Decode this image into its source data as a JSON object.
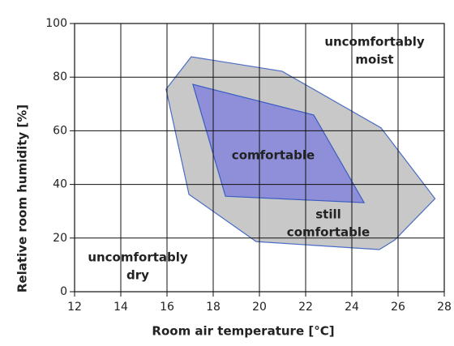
{
  "chart_data": {
    "type": "polygon",
    "xlabel": "Room air temperature   [°C]",
    "ylabel": "Relative room humidity  [%]",
    "xlim": [
      12,
      28
    ],
    "xticks": [
      12,
      14,
      16,
      18,
      20,
      22,
      24,
      26,
      28
    ],
    "ylim": [
      0,
      100
    ],
    "yticks": [
      0,
      20,
      40,
      60,
      80,
      100
    ],
    "grid": true,
    "series": [
      {
        "color": "#c8c8c8",
        "edge": "#4a6cc4",
        "x": [
          17.05,
          20.98,
          25.26,
          27.6,
          25.86,
          25.19,
          19.86,
          16.95,
          15.96
        ],
        "values": [
          87.6,
          82.2,
          61.1,
          34.7,
          19.3,
          15.7,
          18.7,
          36.3,
          75.5
        ]
      },
      {
        "color": "#8f8fd9",
        "edge": "#3a5cc0",
        "x": [
          17.12,
          22.35,
          24.53,
          18.53
        ],
        "values": [
          77.3,
          65.9,
          33.2,
          35.6
        ]
      }
    ],
    "annotations": [
      {
        "lines": [
          "uncomfortably",
          "moist"
        ]
      },
      {
        "lines": [
          "comfortable"
        ]
      },
      {
        "lines": [
          "still",
          "comfortable"
        ]
      },
      {
        "lines": [
          "uncomfortably",
          "dry"
        ]
      }
    ]
  }
}
